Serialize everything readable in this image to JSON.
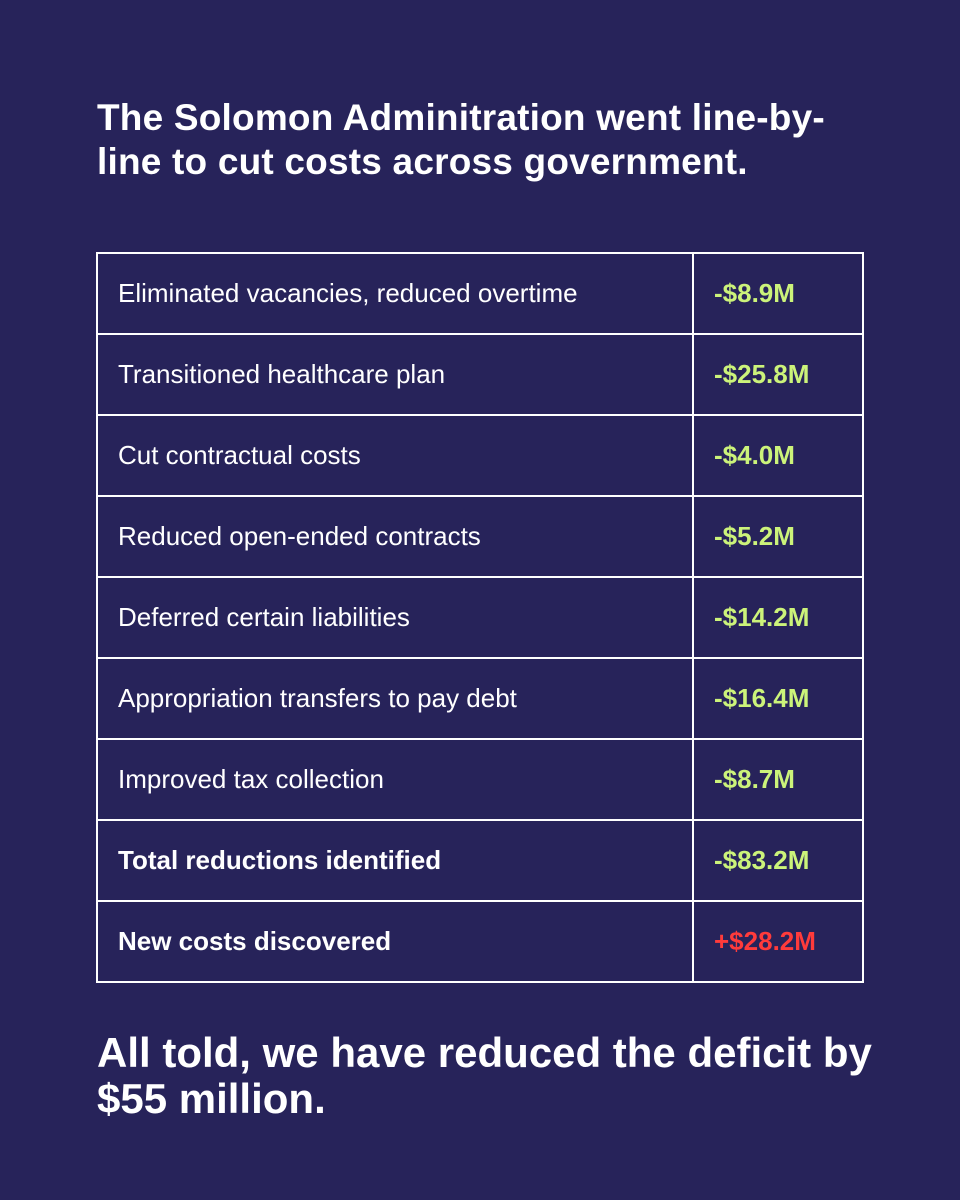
{
  "headline": "The Solomon Adminitration went line-by-line to cut costs across government.",
  "rows": [
    {
      "label": "Eliminated vacancies, reduced overtime",
      "amount": "-$8.9M",
      "amount_color": "#ccf37a"
    },
    {
      "label": "Transitioned healthcare plan",
      "amount": "-$25.8M",
      "amount_color": "#ccf37a"
    },
    {
      "label": "Cut contractual costs",
      "amount": "-$4.0M",
      "amount_color": "#ccf37a"
    },
    {
      "label": "Reduced open-ended contracts",
      "amount": "-$5.2M",
      "amount_color": "#ccf37a"
    },
    {
      "label": "Deferred certain liabilities",
      "amount": "-$14.2M",
      "amount_color": "#ccf37a"
    },
    {
      "label": "Appropriation transfers to pay debt",
      "amount": "-$16.4M",
      "amount_color": "#ccf37a"
    },
    {
      "label": "Improved tax collection",
      "amount": "-$8.7M",
      "amount_color": "#ccf37a"
    },
    {
      "label": "Total reductions identified",
      "amount": "-$83.2M",
      "amount_color": "#ccf37a"
    },
    {
      "label": "New costs discovered",
      "amount": "+$28.2M",
      "amount_color": "#ff3b3b"
    }
  ],
  "conclusion": "All told, we have reduced the deficit by $55 million.",
  "colors": {
    "background": "#27235a",
    "text": "#ffffff",
    "reduction": "#ccf37a",
    "increase": "#ff3b3b"
  }
}
